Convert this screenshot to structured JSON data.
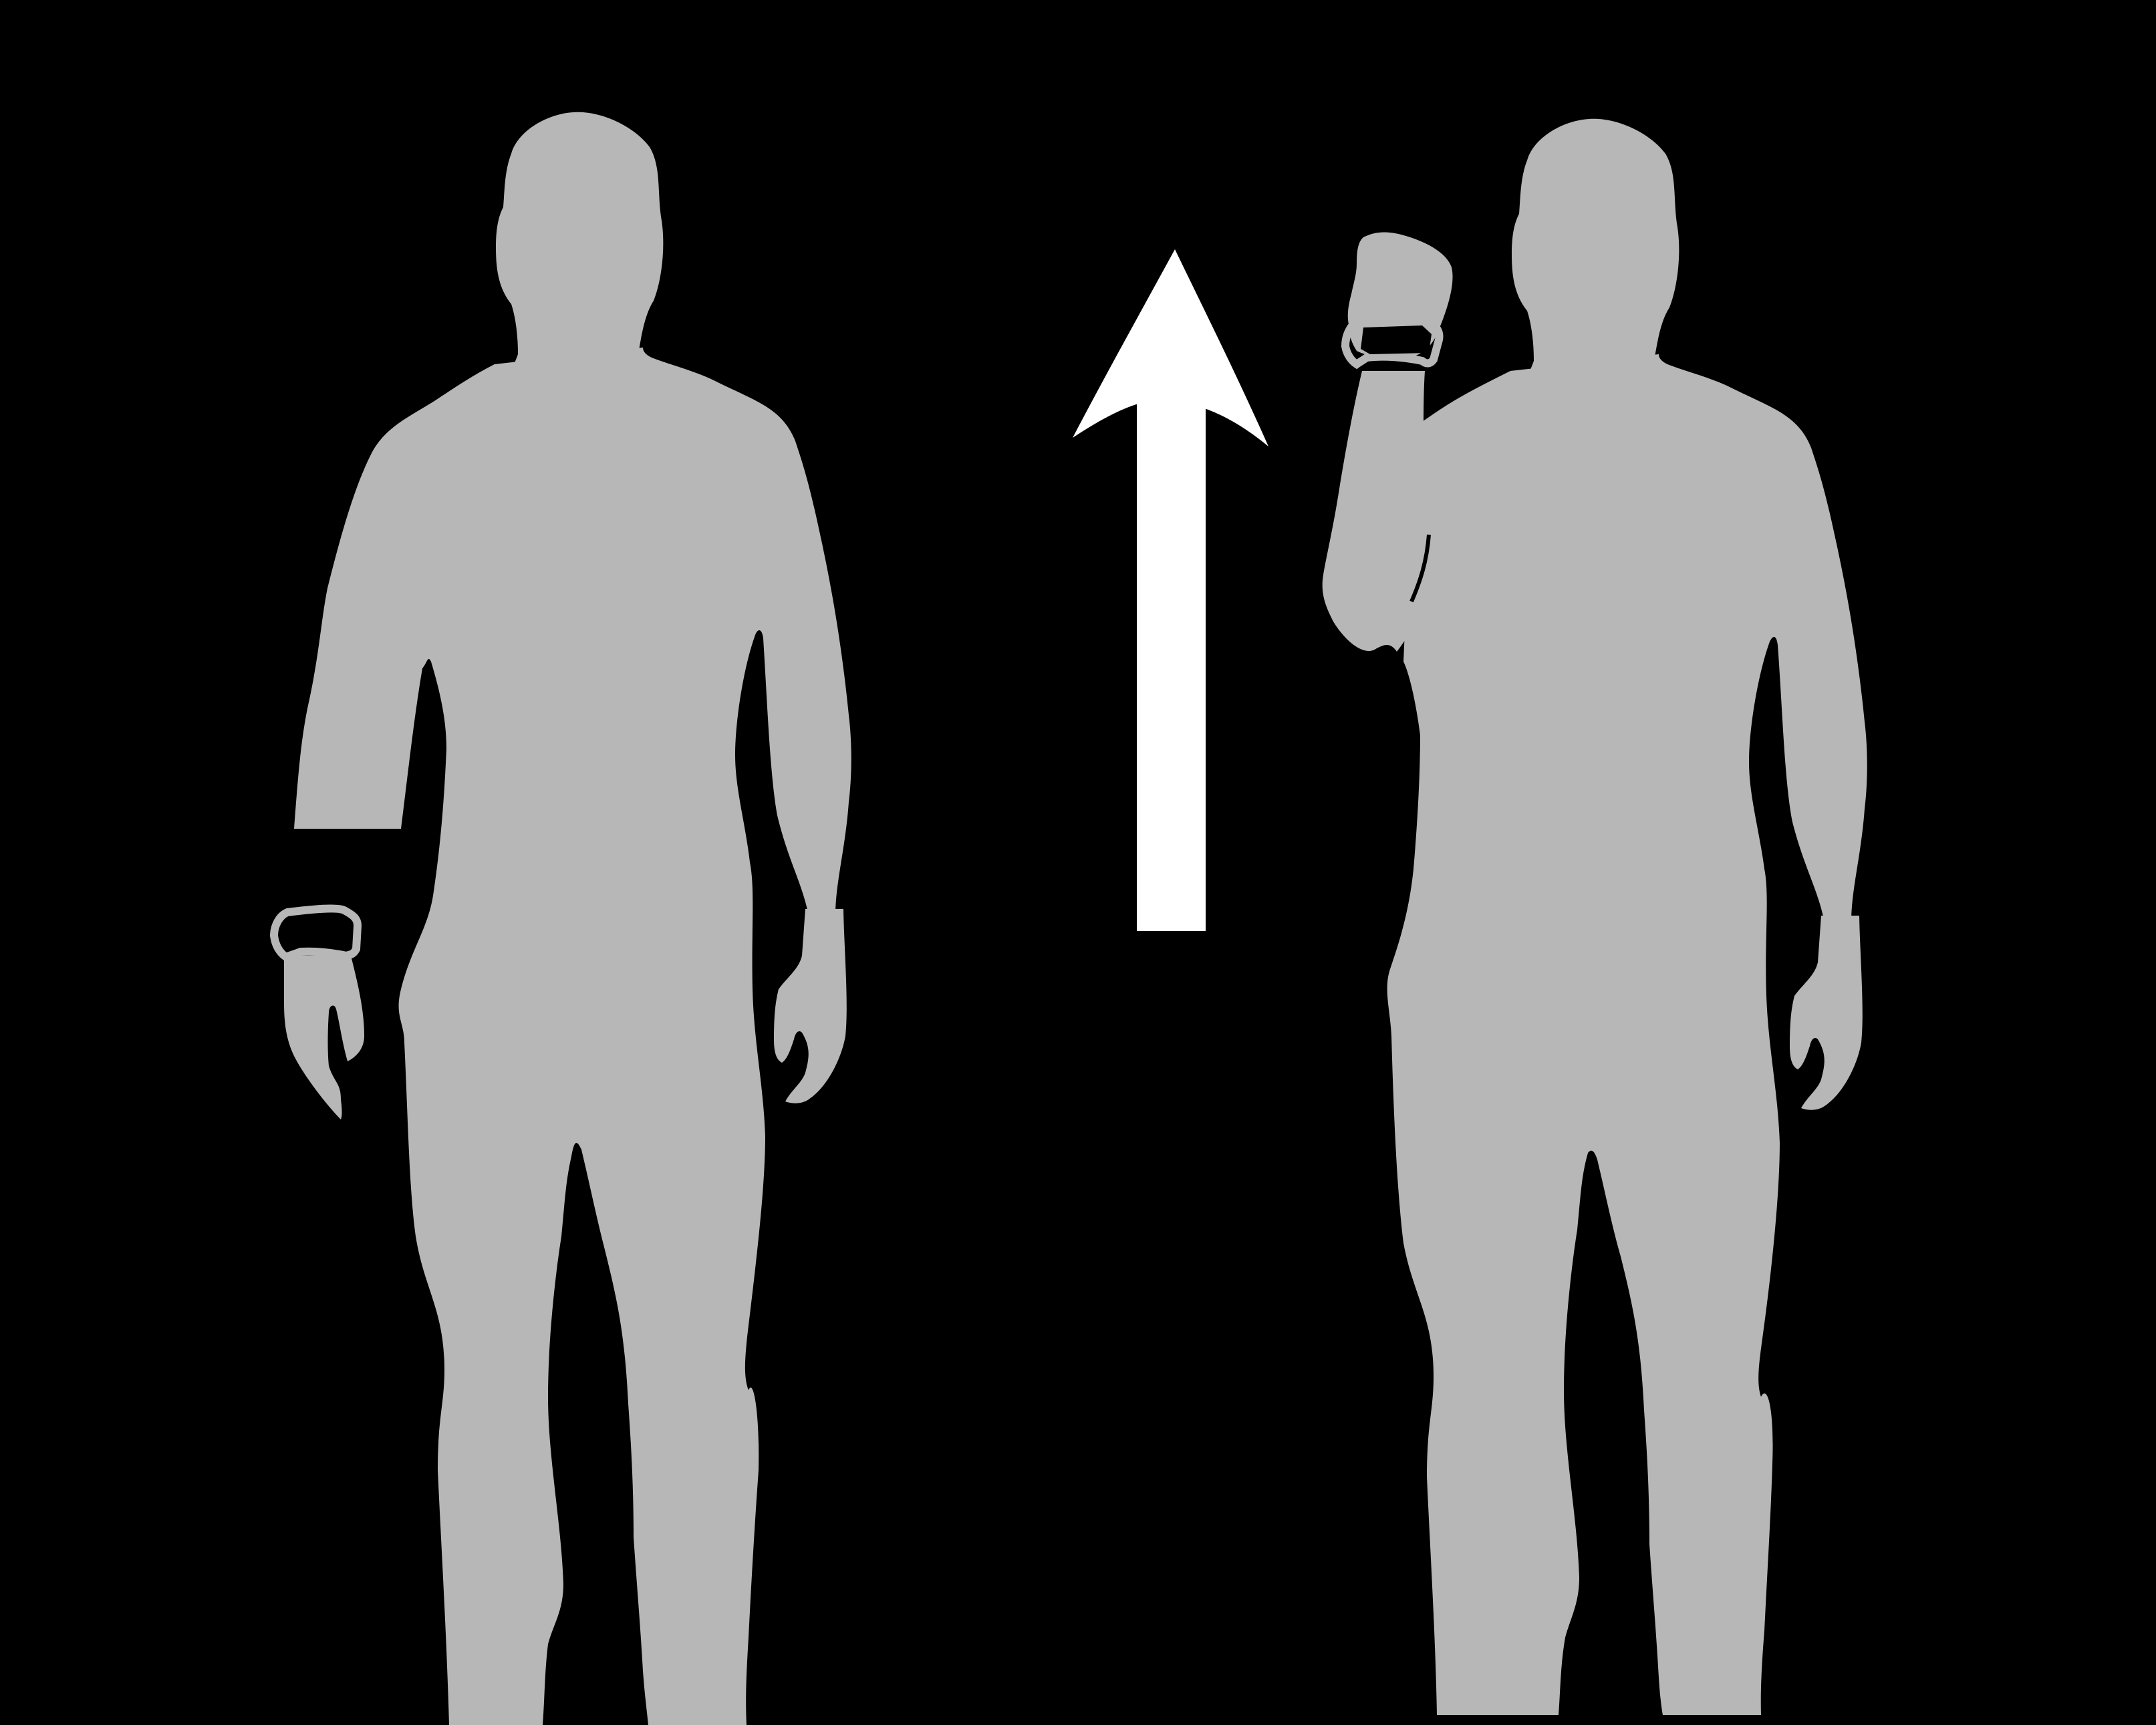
{
  "scene": {
    "background_color": "#000000",
    "figure_color": "#b7b7b7",
    "arrow_color": "#ffffff",
    "left_figure": {
      "pose": "arms-down",
      "wearable": "wristband-on-right-wrist"
    },
    "right_figure": {
      "pose": "right-forearm-raised",
      "wearable": "wristband-on-raised-wrist"
    },
    "arrow": {
      "direction": "up"
    }
  }
}
